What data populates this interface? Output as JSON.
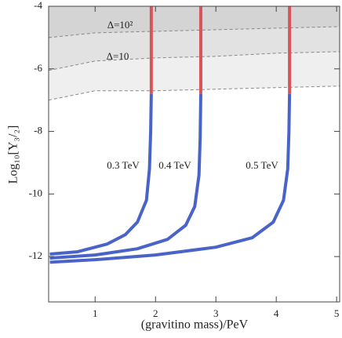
{
  "chart_data": {
    "type": "line",
    "x_label": "(gravitino mass)/PeV",
    "y_label": "Log₁₀[Y₃/₂]",
    "xlim": [
      0.23,
      5.05
    ],
    "ylim": [
      -13.45,
      -4
    ],
    "xticks": [
      1,
      2,
      3,
      4,
      5
    ],
    "yticks": [
      -4,
      -6,
      -8,
      -10,
      -12
    ],
    "bands": [
      {
        "x": [
          0.23,
          1,
          2,
          3,
          4,
          5.05
        ],
        "values": [
          -7.0,
          -6.7,
          -6.7,
          -6.65,
          -6.6,
          -6.55
        ],
        "fill": "#efefef"
      },
      {
        "label": "Δ=10",
        "x": [
          0.23,
          1,
          2,
          3,
          4,
          5.05
        ],
        "values": [
          -6.05,
          -5.75,
          -5.65,
          -5.6,
          -5.5,
          -5.45
        ],
        "fill": "#e2e2e2"
      },
      {
        "label": "Δ=10²",
        "x": [
          0.23,
          1,
          2,
          3,
          4,
          5.05
        ],
        "values": [
          -5.0,
          -4.85,
          -4.8,
          -4.75,
          -4.7,
          -4.65
        ],
        "fill": "#d4d4d4"
      }
    ],
    "curves": [
      {
        "label": "0.3 TeV",
        "segments": [
          {
            "color": "#4a63c8",
            "x": [
              0.25,
              0.7,
              1.2,
              1.5,
              1.7,
              1.85,
              1.9,
              1.92,
              1.93
            ],
            "values": [
              -11.92,
              -11.85,
              -11.6,
              -11.3,
              -10.9,
              -10.2,
              -9.2,
              -8,
              -6.8
            ]
          },
          {
            "color": "#d9545a",
            "x": [
              1.93,
              1.93
            ],
            "values": [
              -6.8,
              -4
            ]
          }
        ]
      },
      {
        "label": "0.4 TeV",
        "segments": [
          {
            "color": "#4a63c8",
            "x": [
              0.25,
              1.0,
              1.7,
              2.2,
              2.5,
              2.65,
              2.72,
              2.74,
              2.75
            ],
            "values": [
              -12.05,
              -11.95,
              -11.75,
              -11.45,
              -11.0,
              -10.4,
              -9.4,
              -8.2,
              -6.8
            ]
          },
          {
            "color": "#d9545a",
            "x": [
              2.75,
              2.75
            ],
            "values": [
              -6.8,
              -4
            ]
          }
        ]
      },
      {
        "label": "0.5 TeV",
        "segments": [
          {
            "color": "#4a63c8",
            "x": [
              0.25,
              1.0,
              2.0,
              3.0,
              3.6,
              3.95,
              4.12,
              4.19,
              4.21,
              4.22
            ],
            "values": [
              -12.18,
              -12.1,
              -11.95,
              -11.7,
              -11.4,
              -10.9,
              -10.2,
              -9.2,
              -8,
              -6.8
            ]
          },
          {
            "color": "#d9545a",
            "x": [
              4.22,
              4.22
            ],
            "values": [
              -6.8,
              -4
            ]
          }
        ]
      }
    ]
  }
}
